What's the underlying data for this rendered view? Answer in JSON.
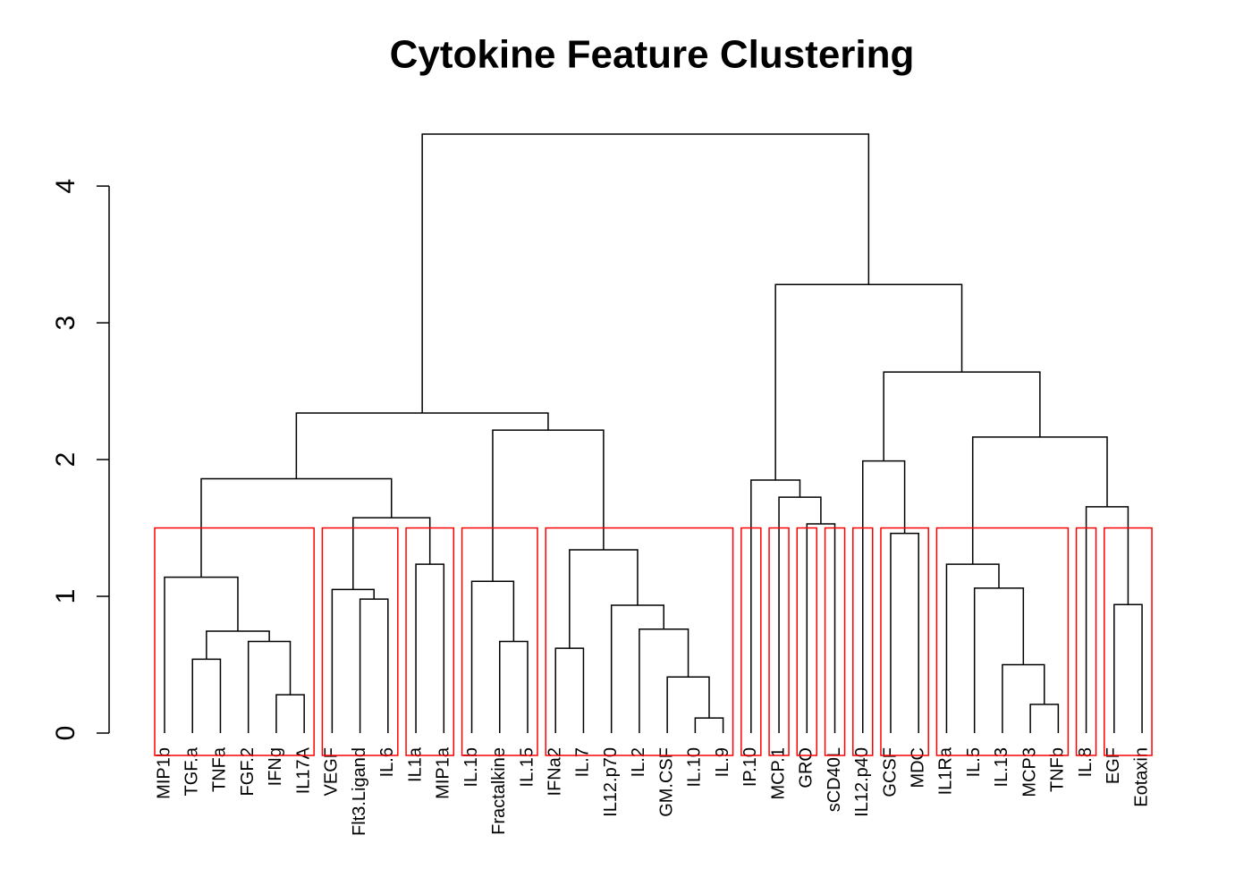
{
  "chart_data": {
    "type": "dendrogram",
    "title": "Cytokine Feature Clustering",
    "labels": [
      "MIP1b",
      "TGF.a",
      "TNFa",
      "FGF.2",
      "IFNg",
      "IL17A",
      "VEGF",
      "Flt3.Ligand",
      "IL.6",
      "IL1a",
      "MIP1a",
      "IL.1b",
      "Fractalkine",
      "IL.15",
      "IFNa2",
      "IL.7",
      "IL12.p70",
      "IL.2",
      "GM.CSF",
      "IL.10",
      "IL.9",
      "IP.10",
      "MCP.1",
      "GRO",
      "sCD40L",
      "IL12.p40",
      "GCSF",
      "MDC",
      "IL1Ra",
      "IL.5",
      "IL.13",
      "MCP3",
      "TNFb",
      "IL.8",
      "EGF",
      "Eotaxin"
    ],
    "merge": [
      [
        -5,
        -6
      ],
      [
        -2,
        -3
      ],
      [
        -4,
        1
      ],
      [
        2,
        3
      ],
      [
        -1,
        4
      ],
      [
        -8,
        -9
      ],
      [
        -7,
        6
      ],
      [
        -10,
        -11
      ],
      [
        7,
        8
      ],
      [
        5,
        9
      ],
      [
        -13,
        -14
      ],
      [
        -12,
        11
      ],
      [
        -20,
        -21
      ],
      [
        -19,
        13
      ],
      [
        -18,
        14
      ],
      [
        -17,
        15
      ],
      [
        -15,
        -16
      ],
      [
        17,
        16
      ],
      [
        12,
        18
      ],
      [
        10,
        19
      ],
      [
        -24,
        -25
      ],
      [
        -23,
        21
      ],
      [
        -22,
        22
      ],
      [
        -27,
        -28
      ],
      [
        -26,
        24
      ],
      [
        -32,
        -33
      ],
      [
        -31,
        26
      ],
      [
        -30,
        27
      ],
      [
        -29,
        28
      ],
      [
        -35,
        -36
      ],
      [
        -34,
        30
      ],
      [
        29,
        31
      ],
      [
        25,
        32
      ],
      [
        23,
        33
      ],
      [
        20,
        34
      ]
    ],
    "height": [
      0.28,
      0.54,
      0.67,
      0.745,
      1.14,
      0.98,
      1.05,
      1.235,
      1.575,
      1.86,
      0.67,
      1.11,
      0.11,
      0.41,
      0.76,
      0.935,
      0.62,
      1.34,
      2.215,
      2.34,
      1.53,
      1.725,
      1.85,
      1.46,
      1.99,
      0.21,
      0.5,
      1.06,
      1.235,
      0.94,
      1.655,
      2.165,
      2.64,
      3.28,
      4.38
    ],
    "cut_height": 1.5,
    "clusters": [
      [
        0,
        5
      ],
      [
        6,
        8
      ],
      [
        9,
        10
      ],
      [
        11,
        13
      ],
      [
        14,
        20
      ],
      [
        21,
        21
      ],
      [
        22,
        22
      ],
      [
        23,
        23
      ],
      [
        24,
        24
      ],
      [
        25,
        25
      ],
      [
        26,
        27
      ],
      [
        28,
        32
      ],
      [
        33,
        33
      ],
      [
        34,
        35
      ]
    ],
    "color": "#000000",
    "cluster_color": "#ff0000",
    "ylim": [
      0,
      4.38
    ],
    "yticks": [
      0,
      1,
      2,
      3,
      4
    ]
  }
}
